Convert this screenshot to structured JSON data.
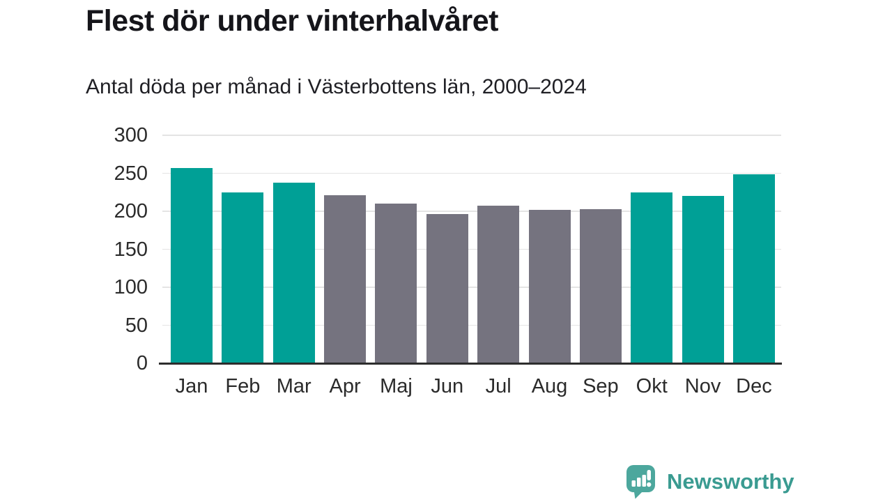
{
  "header": {
    "title": "Flest dör under vinterhalvåret",
    "subtitle": "Antal döda per månad i Västerbottens län, 2000–2024"
  },
  "chart_data": {
    "type": "bar",
    "categories": [
      "Jan",
      "Feb",
      "Mar",
      "Apr",
      "Maj",
      "Jun",
      "Jul",
      "Aug",
      "Sep",
      "Okt",
      "Nov",
      "Dec"
    ],
    "values": [
      257,
      225,
      238,
      221,
      210,
      196,
      207,
      202,
      203,
      225,
      220,
      249
    ],
    "groups": [
      "winter",
      "winter",
      "winter",
      "summer",
      "summer",
      "summer",
      "summer",
      "summer",
      "summer",
      "winter",
      "winter",
      "winter"
    ],
    "title": "Flest dör under vinterhalvåret",
    "subtitle": "Antal döda per månad i Västerbottens län, 2000–2024",
    "xlabel": "",
    "ylabel": "",
    "ylim": [
      0,
      300
    ],
    "yticks": [
      0,
      50,
      100,
      150,
      200,
      250,
      300
    ],
    "grid": true,
    "legend": false,
    "colors": {
      "winter": "#00a096",
      "summer": "#75737f"
    }
  },
  "footer": {
    "brand": "Newsworthy",
    "logo_icon": "newsworthy-speech-bubble-bars-icon",
    "brand_color": "#3a9b91",
    "icon_color": "#4ca79d"
  }
}
